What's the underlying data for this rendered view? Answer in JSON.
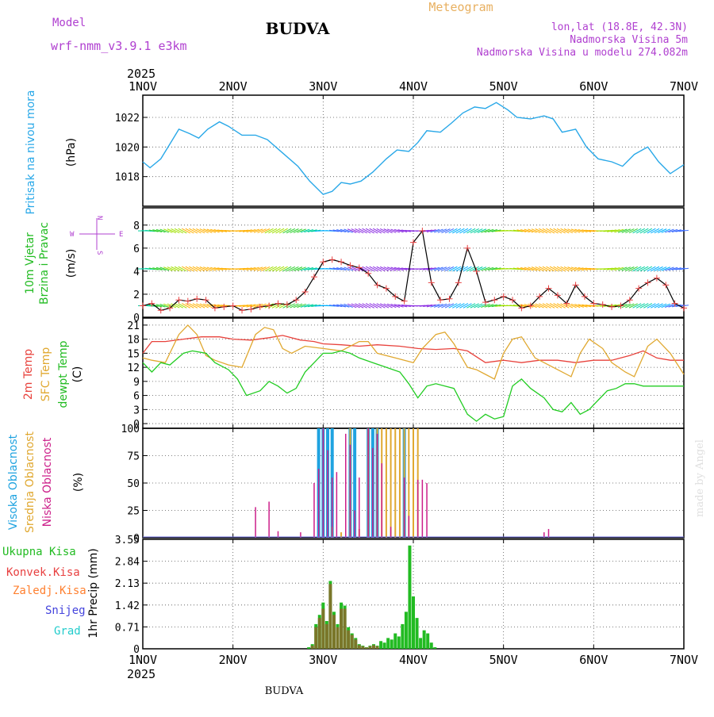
{
  "header": {
    "model_label": "Model",
    "model_name": "wrf-nmm_v3.9.1 e3km",
    "station": "BUDVA",
    "meteogram_label": "Meteogram",
    "coords": "lon,lat (18.8E, 42.3N)",
    "elevation": "Nadmorska Visina 5m",
    "model_elevation": "Nadmorska Visina u modelu 274.082m"
  },
  "colors": {
    "pressure": "#29a8e8",
    "temp2m": "#e8423c",
    "sfc": "#e0a830",
    "dewpt": "#22cc22",
    "cloud_high": "#1fa3e0",
    "cloud_mid": "#e0a830",
    "cloud_low": "#cc1f8a",
    "precip_total": "#22bb22",
    "precip_conv": "#e84040",
    "precip_freezing": "#ff8030",
    "precip_snow": "#4444dd",
    "precip_hail": "#22cccc",
    "model_purple": "#b040d0",
    "meteogram_orange": "#e8b060"
  },
  "footer": {
    "station": "BUDVA",
    "credit": "made by Angel"
  },
  "time_axis": {
    "year": "2025",
    "labels": [
      "1NOV",
      "2NOV",
      "3NOV",
      "4NOV",
      "5NOV",
      "6NOV",
      "7NOV"
    ]
  },
  "panels": {
    "pressure": {
      "ylabel": "Pritisak na nivou mora",
      "unit": "(hPa)"
    },
    "wind": {
      "ylabel_1": "10m Vjetar",
      "ylabel_2": "Brzina i Pravac",
      "unit": "(m/s)",
      "compass_w": "W",
      "compass_e": "E",
      "compass_n": "N",
      "compass_s": "S"
    },
    "temp": {
      "ylabel_1": "2m Temp",
      "ylabel_2": "SFC Temp",
      "ylabel_3": "dewpt Temp",
      "unit": "(C)"
    },
    "cloud": {
      "ylabel_1": "Visoka Oblacnost",
      "ylabel_2": "Srednja Oblacnost",
      "ylabel_3": "Niska Oblacnost",
      "unit": "(%)"
    },
    "precip": {
      "ylabel": "1hr Precip (mm)",
      "legend": [
        "Ukupna Kisa",
        "Konvek.Kisa",
        "Zaledj.Kisa",
        "Snijeg",
        "Grad"
      ]
    }
  },
  "chart_data": [
    {
      "type": "line",
      "title": "Pritisak na nivou mora",
      "ylabel": "(hPa)",
      "x_unit": "days since 1NOV 00Z",
      "xlim": [
        0,
        6
      ],
      "ylim": [
        1016.0,
        1023.5
      ],
      "yticks": [
        1018,
        1020,
        1022
      ],
      "series": [
        {
          "name": "MSLP",
          "x": [
            0.0,
            0.08,
            0.2,
            0.32,
            0.4,
            0.52,
            0.62,
            0.72,
            0.85,
            0.95,
            1.1,
            1.25,
            1.38,
            1.55,
            1.72,
            1.85,
            2.0,
            2.1,
            2.2,
            2.3,
            2.42,
            2.55,
            2.7,
            2.82,
            2.95,
            3.05,
            3.15,
            3.3,
            3.42,
            3.55,
            3.68,
            3.8,
            3.92,
            4.05,
            4.15,
            4.3,
            4.45,
            4.55,
            4.65,
            4.8,
            4.92,
            5.05,
            5.2,
            5.32,
            5.45,
            5.6,
            5.72,
            5.85,
            6.0
          ],
          "values": [
            1019.0,
            1018.6,
            1019.2,
            1020.4,
            1021.2,
            1020.9,
            1020.6,
            1021.2,
            1021.7,
            1021.4,
            1020.8,
            1020.8,
            1020.5,
            1019.6,
            1018.7,
            1017.7,
            1016.8,
            1017.0,
            1017.6,
            1017.5,
            1017.7,
            1018.3,
            1019.2,
            1019.8,
            1019.7,
            1020.3,
            1021.1,
            1021.0,
            1021.6,
            1022.3,
            1022.7,
            1022.6,
            1023.0,
            1022.5,
            1022.0,
            1021.9,
            1022.1,
            1021.9,
            1021.0,
            1021.2,
            1020.0,
            1019.2,
            1019.0,
            1018.7,
            1019.5,
            1020.0,
            1019.0,
            1018.2,
            1018.8
          ]
        }
      ]
    },
    {
      "type": "line",
      "title": "10m Vjetar Brzina i Pravac",
      "ylabel": "(m/s)",
      "x_unit": "days since 1NOV 00Z",
      "xlim": [
        0,
        6
      ],
      "ylim": [
        0,
        9.5
      ],
      "yticks": [
        0,
        2,
        4,
        6,
        8
      ],
      "series": [
        {
          "name": "wind speed",
          "x": [
            0.0,
            0.1,
            0.2,
            0.3,
            0.4,
            0.5,
            0.6,
            0.7,
            0.8,
            0.9,
            1.0,
            1.1,
            1.2,
            1.3,
            1.4,
            1.5,
            1.6,
            1.7,
            1.8,
            1.9,
            2.0,
            2.1,
            2.2,
            2.3,
            2.4,
            2.5,
            2.6,
            2.7,
            2.8,
            2.9,
            3.0,
            3.1,
            3.2,
            3.3,
            3.4,
            3.5,
            3.6,
            3.7,
            3.8,
            3.9,
            4.0,
            4.1,
            4.2,
            4.3,
            4.4,
            4.5,
            4.6,
            4.7,
            4.8,
            4.9,
            5.0,
            5.1,
            5.2,
            5.3,
            5.4,
            5.5,
            5.6,
            5.7,
            5.8,
            5.9,
            6.0
          ],
          "values": [
            1.0,
            1.2,
            0.6,
            0.8,
            1.5,
            1.4,
            1.6,
            1.5,
            0.8,
            0.9,
            1.0,
            0.6,
            0.7,
            0.9,
            1.0,
            1.2,
            1.1,
            1.5,
            2.2,
            3.5,
            4.8,
            5.0,
            4.8,
            4.5,
            4.3,
            3.8,
            2.8,
            2.5,
            1.8,
            1.4,
            6.5,
            7.5,
            3.0,
            1.5,
            1.6,
            3.0,
            6.0,
            4.0,
            1.3,
            1.5,
            1.8,
            1.5,
            0.8,
            1.0,
            1.8,
            2.5,
            1.9,
            1.2,
            2.8,
            1.8,
            1.2,
            1.1,
            0.9,
            1.0,
            1.5,
            2.5,
            3.0,
            3.4,
            2.8,
            1.2,
            0.8
          ]
        }
      ]
    },
    {
      "type": "line",
      "title": "2m Temp / SFC Temp / dewpt Temp",
      "ylabel": "(C)",
      "x_unit": "days since 1NOV 00Z",
      "xlim": [
        0,
        6
      ],
      "ylim": [
        -1,
        22.5
      ],
      "yticks": [
        0,
        3,
        6,
        9,
        12,
        15,
        18,
        21
      ],
      "series": [
        {
          "name": "2m Temp",
          "x": [
            0.0,
            0.1,
            0.25,
            0.45,
            0.65,
            0.85,
            1.0,
            1.2,
            1.4,
            1.55,
            1.75,
            1.9,
            2.0,
            2.2,
            2.4,
            2.6,
            2.85,
            3.05,
            3.25,
            3.45,
            3.6,
            3.8,
            4.0,
            4.2,
            4.4,
            4.6,
            4.8,
            5.0,
            5.2,
            5.4,
            5.55,
            5.7,
            5.85,
            6.0
          ],
          "values": [
            15.0,
            17.5,
            17.5,
            18.0,
            18.5,
            18.5,
            18.0,
            17.8,
            18.3,
            18.8,
            17.8,
            17.5,
            17.0,
            16.8,
            16.5,
            16.8,
            16.5,
            16.0,
            15.8,
            16.0,
            15.5,
            13.0,
            13.5,
            13.0,
            13.5,
            13.5,
            13.0,
            13.5,
            13.5,
            14.5,
            15.5,
            14.0,
            13.5,
            13.5
          ]
        },
        {
          "name": "SFC Temp",
          "x": [
            0.0,
            0.1,
            0.25,
            0.4,
            0.5,
            0.6,
            0.7,
            0.8,
            0.95,
            1.1,
            1.25,
            1.35,
            1.45,
            1.55,
            1.65,
            1.8,
            2.0,
            2.2,
            2.4,
            2.5,
            2.6,
            2.8,
            3.0,
            3.1,
            3.25,
            3.35,
            3.45,
            3.6,
            3.7,
            3.8,
            3.9,
            4.0,
            4.1,
            4.2,
            4.35,
            4.45,
            4.6,
            4.75,
            4.85,
            4.95,
            5.1,
            5.2,
            5.35,
            5.45,
            5.6,
            5.7,
            5.85,
            6.0
          ],
          "values": [
            14.0,
            13.5,
            13.0,
            19.0,
            21.0,
            19.0,
            14.5,
            13.5,
            12.5,
            12.0,
            19.0,
            20.5,
            20.0,
            16.0,
            15.0,
            16.5,
            16.0,
            15.5,
            17.5,
            17.5,
            15.0,
            14.0,
            13.0,
            16.0,
            19.0,
            19.5,
            17.0,
            12.0,
            11.5,
            10.5,
            9.5,
            15.0,
            18.0,
            18.5,
            14.0,
            13.0,
            11.5,
            10.0,
            15.0,
            18.0,
            16.0,
            13.0,
            11.0,
            10.0,
            16.5,
            18.0,
            15.0,
            10.5
          ]
        },
        {
          "name": "dewpt Temp",
          "x": [
            0.0,
            0.1,
            0.2,
            0.3,
            0.45,
            0.55,
            0.7,
            0.8,
            0.95,
            1.05,
            1.15,
            1.3,
            1.4,
            1.5,
            1.6,
            1.7,
            1.8,
            1.9,
            2.0,
            2.1,
            2.2,
            2.3,
            2.4,
            2.55,
            2.7,
            2.85,
            2.95,
            3.05,
            3.15,
            3.25,
            3.35,
            3.45,
            3.6,
            3.7,
            3.8,
            3.9,
            4.0,
            4.1,
            4.2,
            4.3,
            4.45,
            4.55,
            4.65,
            4.75,
            4.85,
            4.95,
            5.05,
            5.15,
            5.25,
            5.35,
            5.45,
            5.55,
            5.7,
            5.85,
            6.0
          ],
          "values": [
            13.0,
            11.0,
            13.0,
            12.5,
            15.0,
            15.5,
            15.0,
            13.0,
            11.5,
            9.5,
            6.0,
            7.0,
            9.0,
            8.0,
            6.5,
            7.5,
            11.0,
            13.0,
            15.0,
            15.0,
            15.5,
            15.0,
            14.0,
            13.0,
            12.0,
            11.0,
            8.5,
            5.5,
            8.0,
            8.5,
            8.0,
            7.5,
            2.0,
            0.5,
            2.0,
            1.0,
            1.5,
            8.0,
            9.5,
            7.5,
            5.5,
            3.0,
            2.5,
            4.5,
            2.0,
            3.0,
            5.0,
            7.0,
            7.5,
            8.5,
            8.5,
            8.0,
            8.0,
            8.0,
            8.0
          ]
        }
      ]
    },
    {
      "type": "bar",
      "title": "Visoka / Srednja / Niska Oblacnost",
      "ylabel": "(%)",
      "x_unit": "days since 1NOV 00Z",
      "xlim": [
        0,
        6
      ],
      "ylim": [
        0,
        100
      ],
      "yticks": [
        0,
        25,
        50,
        75,
        100
      ],
      "series": [
        {
          "name": "Visoka Oblacnost",
          "x": [
            1.95,
            2.0,
            2.05,
            2.1,
            2.3,
            2.35,
            2.5,
            2.55,
            2.6,
            2.9
          ],
          "values": [
            100,
            100,
            100,
            100,
            100,
            100,
            100,
            100,
            100,
            100
          ]
        },
        {
          "name": "Srednja Oblacnost",
          "x": [
            2.1,
            2.2,
            2.3,
            2.4,
            2.5,
            2.6,
            2.65,
            2.7,
            2.75,
            2.8,
            2.85,
            2.9,
            2.95,
            3.0,
            3.05
          ],
          "values": [
            10,
            5,
            100,
            8,
            100,
            100,
            100,
            100,
            100,
            100,
            100,
            100,
            100,
            100,
            100
          ]
        },
        {
          "name": "Niska Oblacnost",
          "x": [
            1.25,
            1.4,
            1.5,
            1.75,
            1.9,
            1.95,
            2.0,
            2.05,
            2.1,
            2.15,
            2.25,
            2.3,
            2.35,
            2.4,
            2.5,
            2.55,
            2.6,
            2.65,
            2.75,
            2.9,
            2.95,
            3.05,
            3.1,
            3.15,
            4.45,
            4.5
          ],
          "values": [
            28,
            33,
            6,
            5,
            50,
            63,
            100,
            80,
            55,
            60,
            95,
            85,
            25,
            55,
            100,
            82,
            95,
            68,
            10,
            55,
            20,
            53,
            53,
            50,
            5,
            8
          ]
        }
      ]
    },
    {
      "type": "bar",
      "title": "1hr Precip (mm)",
      "ylabel": "1hr Precip (mm)",
      "x_unit": "days since 1NOV 00Z",
      "xlim": [
        0,
        6
      ],
      "ylim": [
        0,
        3.55
      ],
      "yticks": [
        0,
        0.71,
        1.42,
        2.13,
        2.84,
        3.55
      ],
      "series": [
        {
          "name": "Ukupna Kisa",
          "x": [
            1.84,
            1.88,
            1.92,
            1.96,
            2.0,
            2.04,
            2.08,
            2.12,
            2.16,
            2.2,
            2.24,
            2.28,
            2.32,
            2.36,
            2.4,
            2.44,
            2.48,
            2.52,
            2.56,
            2.6,
            2.64,
            2.68,
            2.72,
            2.76,
            2.8,
            2.84,
            2.88,
            2.92,
            2.96,
            3.0,
            3.04,
            3.08,
            3.12,
            3.16,
            3.2,
            3.24
          ],
          "values": [
            0.05,
            0.15,
            0.8,
            1.1,
            1.5,
            0.9,
            2.2,
            1.2,
            0.8,
            1.5,
            1.4,
            0.7,
            0.5,
            0.35,
            0.15,
            0.1,
            0.05,
            0.1,
            0.15,
            0.1,
            0.25,
            0.2,
            0.35,
            0.3,
            0.5,
            0.4,
            0.8,
            1.2,
            3.35,
            1.7,
            1.0,
            0.35,
            0.6,
            0.5,
            0.2,
            0.05
          ]
        },
        {
          "name": "Konvek.Kisa",
          "x": [
            1.88,
            1.92,
            1.96,
            2.0,
            2.04,
            2.08,
            2.12,
            2.16,
            2.2,
            2.24,
            2.28,
            2.32,
            2.36,
            2.4,
            2.44,
            2.48,
            2.52,
            2.56,
            2.6
          ],
          "values": [
            0.1,
            0.7,
            1.0,
            1.3,
            0.8,
            2.1,
            1.1,
            0.7,
            1.3,
            1.3,
            0.6,
            0.45,
            0.3,
            0.12,
            0.08,
            0.04,
            0.08,
            0.12,
            0.08
          ]
        }
      ]
    }
  ]
}
